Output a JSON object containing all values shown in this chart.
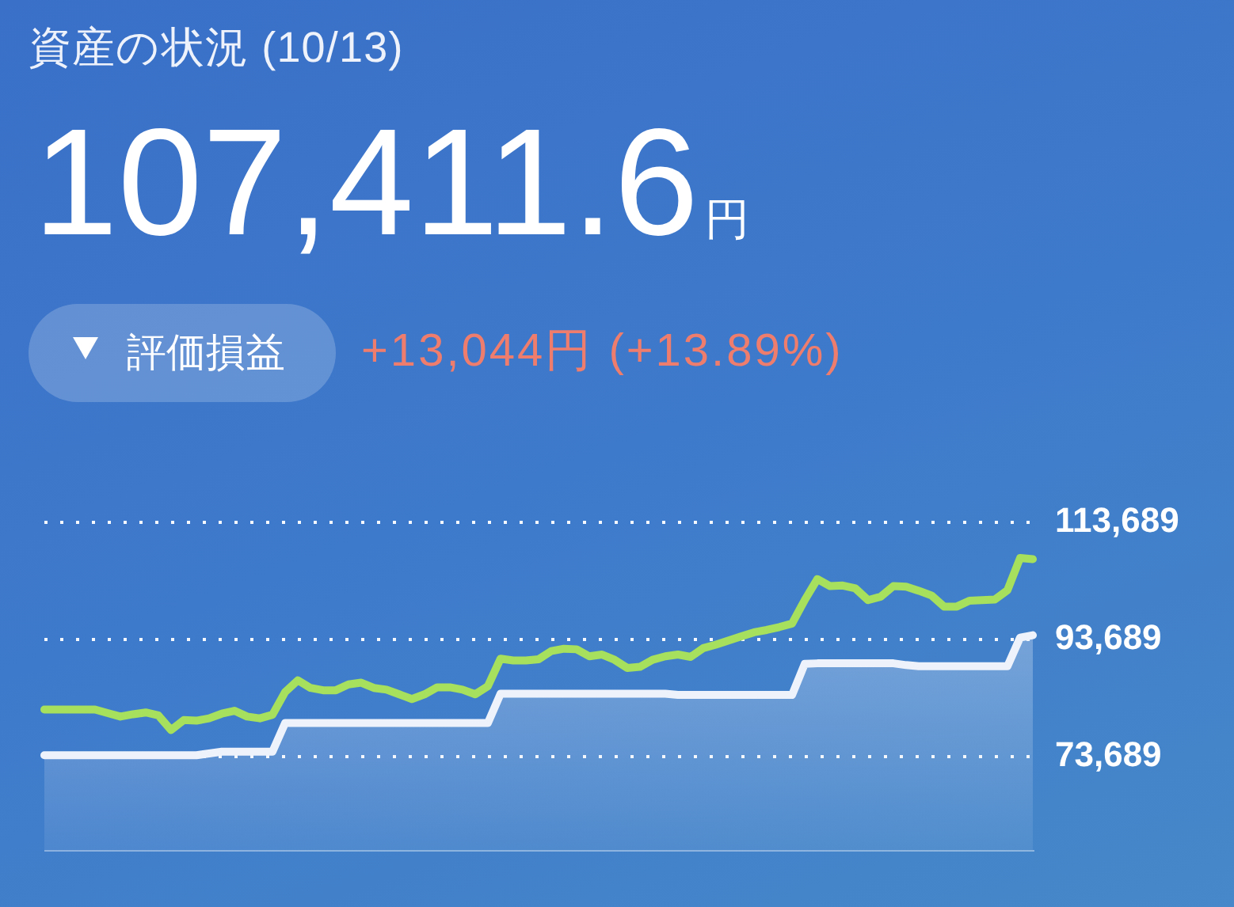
{
  "chart_data": {
    "type": "line",
    "title": "資産の状況 (10/13)",
    "subtitle": "107,411.6円",
    "annotations": [
      "評価損益",
      "+13,044円 (+13.89%)"
    ],
    "categories": [
      null,
      null,
      null,
      null,
      null,
      null,
      null,
      null,
      null,
      null,
      null,
      null,
      null,
      null,
      null,
      null,
      null,
      null,
      null,
      null,
      null,
      null,
      null,
      null,
      null,
      null,
      null,
      null,
      null,
      null,
      null,
      null,
      null,
      null,
      null,
      null,
      null,
      null,
      null,
      null,
      null,
      null,
      null,
      null,
      null,
      null,
      null,
      null,
      null,
      null,
      null,
      null,
      null,
      null,
      null,
      null,
      null,
      null,
      null,
      null,
      null,
      null,
      null,
      null,
      null,
      null,
      null,
      null,
      null,
      null,
      null,
      null,
      null,
      null,
      null,
      null,
      null,
      null,
      null
    ],
    "series": [
      {
        "type": "line",
        "color": "#a6e05c",
        "values": [
          81700,
          81700,
          81700,
          81700,
          81700,
          81100,
          80500,
          80900,
          81200,
          80700,
          78200,
          79900,
          79800,
          80200,
          81000,
          81500,
          80500,
          80200,
          80800,
          84700,
          86700,
          85400,
          85000,
          85000,
          86000,
          86300,
          85400,
          85100,
          84300,
          83500,
          84300,
          85500,
          85500,
          85100,
          84300,
          85700,
          90400,
          90100,
          90100,
          90300,
          91700,
          92100,
          92000,
          90800,
          91100,
          90200,
          88800,
          89000,
          90200,
          90800,
          91100,
          90700,
          92200,
          92800,
          93500,
          94200,
          94900,
          95300,
          95800,
          96400,
          100400,
          104000,
          102800,
          102900,
          102400,
          100400,
          101000,
          102800,
          102700,
          102000,
          101200,
          99300,
          99300,
          100300,
          100400,
          100500,
          102100,
          107600,
          107400
        ]
      },
      {
        "type": "area",
        "color": "#eef3fb",
        "values": [
          73900,
          73900,
          73900,
          73900,
          73900,
          73900,
          73900,
          73900,
          73900,
          73900,
          73900,
          73900,
          73900,
          74200,
          74500,
          74500,
          74500,
          74500,
          74500,
          79400,
          79400,
          79400,
          79400,
          79400,
          79400,
          79400,
          79400,
          79400,
          79400,
          79400,
          79400,
          79400,
          79400,
          79400,
          79400,
          79400,
          84400,
          84400,
          84400,
          84400,
          84400,
          84400,
          84400,
          84400,
          84400,
          84400,
          84400,
          84400,
          84400,
          84400,
          84200,
          84200,
          84200,
          84200,
          84200,
          84200,
          84200,
          84200,
          84200,
          84200,
          89500,
          89600,
          89600,
          89600,
          89600,
          89600,
          89600,
          89600,
          89300,
          89100,
          89100,
          89100,
          89100,
          89100,
          89100,
          89100,
          89100,
          94000,
          94400
        ]
      }
    ],
    "ylim": [
      57700,
      113689
    ],
    "yticks": [
      {
        "value": 73689,
        "label": "73,689"
      },
      {
        "value": 93689,
        "label": "93,689"
      },
      {
        "value": 113689,
        "label": "113,689"
      }
    ],
    "grid": "y",
    "tick_labels": "y",
    "marker": "none"
  }
}
